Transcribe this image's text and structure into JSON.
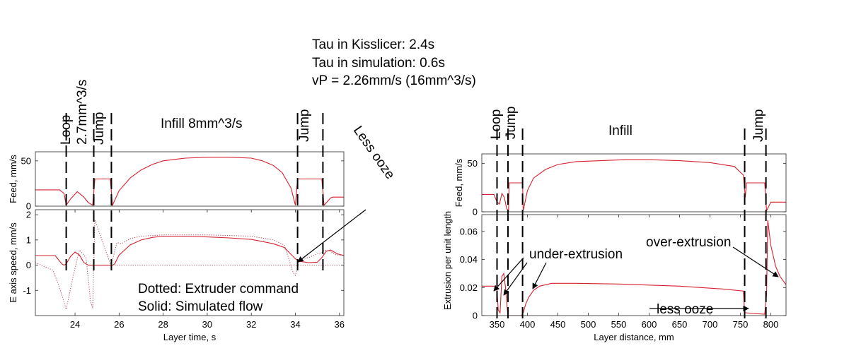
{
  "header": {
    "line1": "Tau in Kisslicer: 2.4s",
    "line2": "Tau in simulation: 0.6s",
    "line3": "vP = 2.26mm/s (16mm^3/s)"
  },
  "colors": {
    "simulated": "#d6202f",
    "command": "#b04050",
    "axis": "#262626",
    "marker": "#000000",
    "grid_bg": "#ffffff"
  },
  "chart_data": [
    {
      "id": "left-feed",
      "type": "line",
      "ylabel": "Feed, mm/s",
      "xlim": [
        22.2,
        36.2
      ],
      "ylim": [
        0,
        60
      ],
      "xticks": [],
      "yticks": [
        0,
        50
      ],
      "series": [
        {
          "style": "solid",
          "x": [
            22.2,
            23.3,
            23.5,
            23.6,
            23.8,
            24.1,
            24.4,
            24.6,
            24.8,
            24.9,
            25.6,
            25.7,
            26.0,
            26.5,
            27.0,
            27.5,
            28.0,
            29.0,
            30.0,
            31.0,
            32.0,
            32.5,
            33.0,
            33.4,
            33.8,
            34.0,
            34.1,
            35.2,
            35.3,
            35.6,
            35.7,
            36.2
          ],
          "y": [
            18,
            18,
            14,
            1,
            8,
            16,
            10,
            4,
            1,
            30,
            30,
            1,
            17,
            31,
            40,
            46,
            50,
            53,
            54,
            54,
            53,
            50,
            45,
            37,
            20,
            1,
            30,
            30,
            1,
            9,
            10,
            10
          ]
        }
      ]
    },
    {
      "id": "left-espeed",
      "type": "line",
      "ylabel": "E axis speed, mm/s",
      "xlabel": "Layer time, s",
      "xlim": [
        22.2,
        36.2
      ],
      "ylim": [
        -2,
        2.2
      ],
      "xticks": [
        24,
        26,
        28,
        30,
        32,
        34,
        36
      ],
      "yticks": [
        -1,
        0,
        1,
        2
      ],
      "series": [
        {
          "style": "solid",
          "x": [
            22.2,
            23.1,
            23.4,
            23.5,
            23.6,
            23.8,
            24.0,
            24.2,
            24.4,
            24.6,
            24.8,
            25.7,
            25.8,
            26.0,
            26.5,
            27.0,
            27.5,
            28.0,
            29.0,
            30.0,
            31.0,
            32.0,
            33.0,
            33.5,
            34.0,
            34.2,
            34.6,
            35.0,
            35.2,
            35.4,
            35.6,
            35.9,
            36.2
          ],
          "y": [
            0.38,
            0.38,
            0.05,
            0,
            0.05,
            0.35,
            0.52,
            0.4,
            0.1,
            0,
            0,
            0,
            0.05,
            0.4,
            0.8,
            1.0,
            1.1,
            1.15,
            1.15,
            1.12,
            1.08,
            1.02,
            0.85,
            0.7,
            0.25,
            0.15,
            0.1,
            0.12,
            0.3,
            0.55,
            0.6,
            0.45,
            0.38
          ]
        },
        {
          "style": "dotted",
          "x": [
            22.2,
            23.0,
            23.3,
            23.6,
            23.9,
            24.2,
            24.5,
            24.7,
            24.8,
            24.9,
            25.6,
            25.7,
            25.9,
            26.1,
            26.5,
            27.0,
            28.0,
            30.0,
            32.0,
            33.0,
            33.5,
            33.9,
            34.0,
            34.2,
            34.6,
            35.0,
            35.2,
            35.3,
            35.6,
            35.8,
            36.2
          ],
          "y": [
            0.1,
            -0.2,
            -0.9,
            -1.75,
            -0.5,
            0.6,
            0.3,
            -1.4,
            -1.75,
            1.8,
            0.05,
            0.2,
            0.9,
            0.85,
            1.05,
            1.15,
            1.2,
            1.2,
            1.15,
            1.0,
            0.8,
            -0.3,
            -0.4,
            0.25,
            0.3,
            0.45,
            0.5,
            0.6,
            0.55,
            0.42,
            0.38
          ]
        }
      ],
      "annotations": [
        "Dotted: Extruder command",
        "Solid: Simulated flow"
      ]
    },
    {
      "id": "right-feed",
      "type": "line",
      "ylabel": "Feed, mm/s",
      "xlim": [
        325,
        825
      ],
      "ylim": [
        0,
        60
      ],
      "xticks": [],
      "yticks": [
        0,
        50
      ],
      "series": [
        {
          "style": "solid",
          "x": [
            325,
            345,
            350,
            354,
            358,
            362,
            366,
            369,
            370,
            392,
            393,
            400,
            410,
            430,
            450,
            480,
            520,
            560,
            600,
            650,
            700,
            740,
            755,
            758,
            760,
            790,
            793,
            800,
            825
          ],
          "y": [
            18,
            18,
            10,
            8,
            19,
            15,
            3,
            1,
            30,
            30,
            1,
            22,
            35,
            44,
            49,
            52,
            53,
            54,
            54,
            53,
            51,
            47,
            38,
            15,
            30,
            30,
            1,
            10,
            10
          ]
        }
      ]
    },
    {
      "id": "right-extrusion",
      "type": "line",
      "ylabel": "Extrusion per unit length",
      "xlabel": "Layer distance, mm",
      "xlim": [
        325,
        825
      ],
      "ylim": [
        0,
        0.072
      ],
      "xticks": [
        350,
        400,
        450,
        500,
        550,
        600,
        650,
        700,
        750,
        800
      ],
      "yticks": [
        0,
        0.02,
        0.04,
        0.06
      ],
      "series": [
        {
          "style": "solid",
          "x": [
            325,
            345,
            350,
            352,
            355,
            358,
            361,
            364,
            367,
            368,
            390,
            393,
            397,
            402,
            410,
            420,
            440,
            480,
            550,
            650,
            720,
            755,
            757,
            759,
            770,
            790,
            793,
            795,
            800,
            808,
            815,
            825
          ],
          "y": [
            0.021,
            0.021,
            0.018,
            0.004,
            0.002,
            0.028,
            0.03,
            0.02,
            0.004,
            0,
            0,
            0.002,
            0.008,
            0.013,
            0.018,
            0.021,
            0.023,
            0.023,
            0.0225,
            0.021,
            0.019,
            0.0175,
            0.002,
            0.002,
            0.0015,
            0.001,
            0.015,
            0.068,
            0.05,
            0.035,
            0.028,
            0.022
          ]
        }
      ]
    }
  ],
  "figure_labels": {
    "left_loop": "Loop",
    "left_loop_flow": "2.7mm^3/s",
    "left_jump1": "Jump",
    "left_infill": "Infill 8mm^3/s",
    "left_jump2": "Jump",
    "less_ooze_left": "Less ooze",
    "right_loop": "Loop",
    "right_jump1": "Jump",
    "right_infill": "Infill",
    "right_jump2": "Jump",
    "under_extrusion": "under-extrusion",
    "over_extrusion": "over-extrusion",
    "less_ooze_right": "less ooze"
  },
  "left_boundaries_s": [
    23.6,
    24.85,
    25.65,
    34.1,
    35.25
  ],
  "right_boundaries_mm": [
    350,
    368,
    392,
    757,
    792
  ]
}
